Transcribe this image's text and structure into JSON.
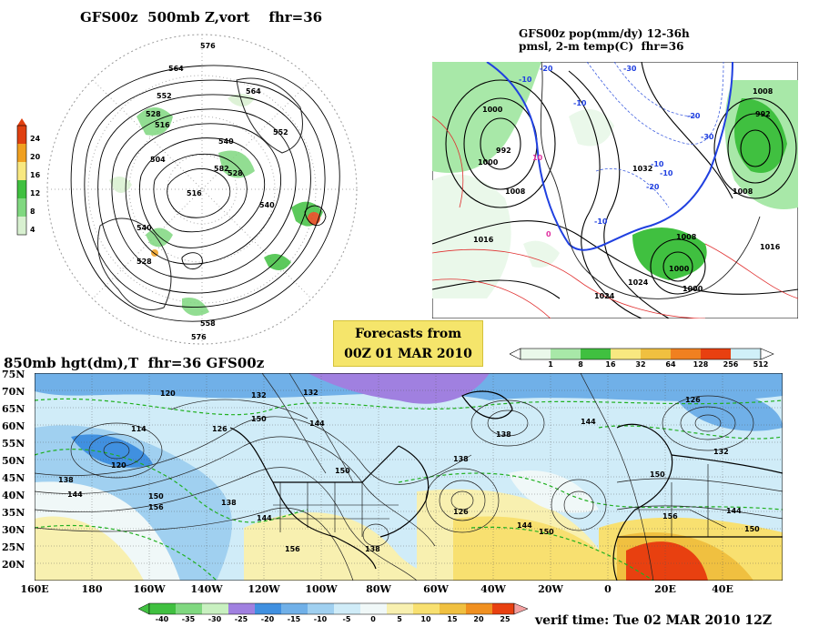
{
  "panel_vort": {
    "title": "GFS00z  500mb Z,vort    fhr=36",
    "colorbar_values": [
      "24",
      "20",
      "16",
      "12",
      "8",
      "4"
    ],
    "colorbar_colors": [
      "#e04010",
      "#f0a020",
      "#f8e880",
      "#40c040",
      "#80d880",
      "#d8f0d0"
    ],
    "contour_labels": [
      "576",
      "564",
      "552",
      "540",
      "528",
      "516",
      "504",
      "516",
      "528",
      "540",
      "552",
      "564",
      "576",
      "582",
      "558",
      "540",
      "528"
    ]
  },
  "panel_precip": {
    "title_line1": "GFS00z pop(mm/dy) 12-36h",
    "title_line2": "pmsl, 2-m temp(C)  fhr=36",
    "isobar_labels": [
      "1000",
      "992",
      "1000",
      "1008",
      "1016",
      "1024",
      "1032",
      "1008",
      "1000",
      "992",
      "1008",
      "1016",
      "1000",
      "1024",
      "1008"
    ],
    "temp_labels": [
      "-10",
      "-20",
      "-30",
      "-10",
      "-20",
      "-30",
      "-10",
      "10",
      "0",
      "-20",
      "-10",
      "-10"
    ],
    "colorbar_values": [
      "1",
      "8",
      "16",
      "32",
      "64",
      "128",
      "256",
      "512"
    ],
    "colorbar_colors": [
      "#eaf8ea",
      "#a8e8a8",
      "#40c040",
      "#f8e880",
      "#f0c040",
      "#f08020",
      "#e84010",
      "#d0f0f8"
    ]
  },
  "banner": {
    "line1": "Forecasts from",
    "line2": "00Z 01 MAR 2010"
  },
  "panel_850": {
    "title": "850mb hgt(dm),T  fhr=36 GFS00z",
    "lat_labels": [
      "75N",
      "70N",
      "65N",
      "60N",
      "55N",
      "50N",
      "45N",
      "40N",
      "35N",
      "30N",
      "25N",
      "20N"
    ],
    "lon_labels": [
      "160E",
      "180",
      "160W",
      "140W",
      "120W",
      "100W",
      "80W",
      "60W",
      "40W",
      "20W",
      "0",
      "20E",
      "40E"
    ],
    "height_labels": [
      "120",
      "114",
      "120",
      "138",
      "144",
      "150",
      "156",
      "126",
      "132",
      "138",
      "144",
      "150",
      "156",
      "144",
      "150",
      "138",
      "132",
      "126",
      "138",
      "144",
      "150",
      "144",
      "126",
      "132",
      "138",
      "150",
      "156",
      "144",
      "150"
    ],
    "colorbar_values": [
      "-40",
      "-35",
      "-30",
      "-25",
      "-20",
      "-15",
      "-10",
      "-5",
      "0",
      "5",
      "10",
      "15",
      "20",
      "25"
    ],
    "colorbar_colors": [
      "#40c040",
      "#80d880",
      "#c8f0c0",
      "#a080e0",
      "#4090e0",
      "#70b0e8",
      "#a0d0f0",
      "#d0ecf8",
      "#f0f8f8",
      "#f8f0b0",
      "#f8e070",
      "#f0c040",
      "#f09020",
      "#e84010"
    ],
    "verif_time": "verif time: Tue 02 MAR 2010 12Z"
  }
}
